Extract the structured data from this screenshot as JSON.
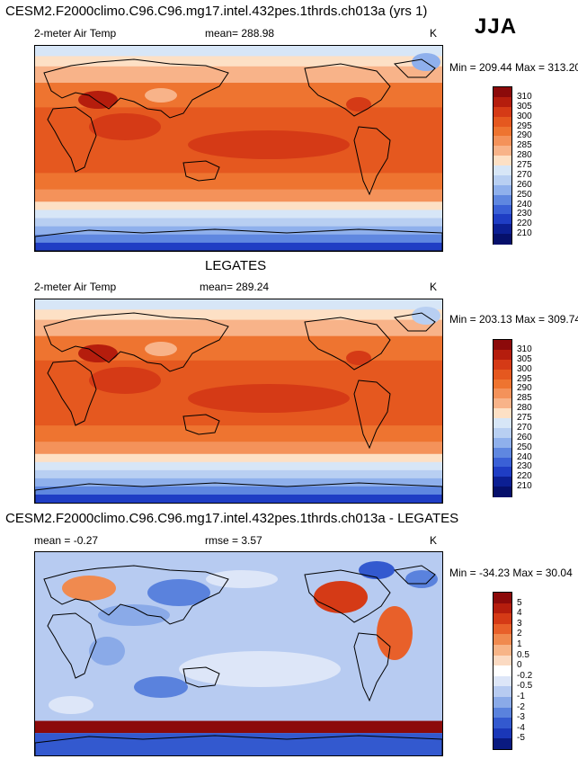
{
  "page_title": "CESM2.F2000climo.C96.C96.mg17.intel.432pes.1thrds.ch013a (yrs 1)",
  "season": "JJA",
  "chart_data": [
    {
      "type": "heatmap",
      "title": "CESM2.F2000climo.C96.C96.mg17.intel.432pes.1thrds.ch013a (yrs 1)",
      "variable": "2-meter Air Temp",
      "mean_text": "mean= 288.98",
      "units": "K",
      "minmax_text": "Min = 209.44 Max = 313.20",
      "min": 209.44,
      "max": 313.2,
      "mean": 288.98,
      "colorbar_levels": [
        "310",
        "305",
        "300",
        "295",
        "290",
        "285",
        "280",
        "275",
        "270",
        "260",
        "250",
        "240",
        "230",
        "220",
        "210"
      ]
    },
    {
      "type": "heatmap",
      "title": "LEGATES",
      "variable": "2-meter Air Temp",
      "mean_text": "mean= 289.24",
      "units": "K",
      "minmax_text": "Min = 203.13 Max = 309.74",
      "min": 203.13,
      "max": 309.74,
      "mean": 289.24,
      "colorbar_levels": [
        "310",
        "305",
        "300",
        "295",
        "290",
        "285",
        "280",
        "275",
        "270",
        "260",
        "250",
        "240",
        "230",
        "220",
        "210"
      ]
    },
    {
      "type": "heatmap",
      "title": "CESM2.F2000climo.C96.C96.mg17.intel.432pes.1thrds.ch013a - LEGATES",
      "variable": "",
      "mean_text": "mean =  -0.27",
      "rmse_text": "rmse =   3.57",
      "units": "K",
      "minmax_text": "Min = -34.23 Max =  30.04",
      "min": -34.23,
      "max": 30.04,
      "mean": -0.27,
      "rmse": 3.57,
      "colorbar_levels": [
        "5",
        "4",
        "3",
        "2",
        "1",
        "0.5",
        "0",
        "-0.2",
        "-0.5",
        "-1",
        "-2",
        "-3",
        "-4",
        "-5"
      ]
    }
  ],
  "colors": {
    "abs_scale": [
      "#8c0a0a",
      "#b51d0d",
      "#d53a16",
      "#e5581f",
      "#ee7430",
      "#f4925a",
      "#f8b389",
      "#fde0c5",
      "#d7e6f7",
      "#b8cff2",
      "#8fb0ec",
      "#5f87e0",
      "#3a60d6",
      "#1f3dc4",
      "#0c1f93",
      "#06106b"
    ],
    "diff_scale": [
      "#8c0a0a",
      "#b51d0d",
      "#d53a16",
      "#e8602a",
      "#f08a4f",
      "#f7b487",
      "#fbdac2",
      "#ffffff",
      "#dde6f8",
      "#b7cbf1",
      "#8aaae8",
      "#5a82dd",
      "#3359cf",
      "#1a37b8",
      "#0a1a80"
    ]
  }
}
